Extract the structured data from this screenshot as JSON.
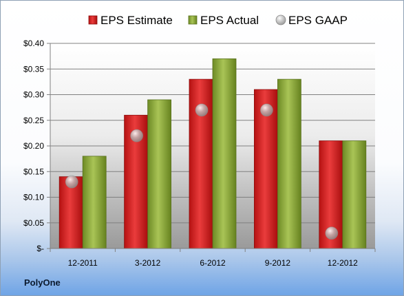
{
  "company": "PolyOne",
  "chart_data": {
    "type": "bar",
    "categories": [
      "12-2011",
      "3-2012",
      "6-2012",
      "9-2012",
      "12-2012"
    ],
    "series": [
      {
        "name": "EPS Estimate",
        "type": "bar",
        "color": "#cc1f1f",
        "values": [
          0.14,
          0.26,
          0.33,
          0.31,
          0.21
        ]
      },
      {
        "name": "EPS Actual",
        "type": "bar",
        "color": "#8aa83a",
        "values": [
          0.18,
          0.29,
          0.37,
          0.33,
          0.21
        ]
      },
      {
        "name": "EPS GAAP",
        "type": "scatter",
        "color": "#b8b8b8",
        "values": [
          0.13,
          0.22,
          0.27,
          0.27,
          0.03
        ]
      }
    ],
    "ylim": [
      0,
      0.4
    ],
    "yticks": [
      0,
      0.05,
      0.1,
      0.15,
      0.2,
      0.25,
      0.3,
      0.35,
      0.4
    ],
    "ytick_labels": [
      "$-",
      "$0.05",
      "$0.10",
      "$0.15",
      "$0.20",
      "$0.25",
      "$0.30",
      "$0.35",
      "$0.40"
    ],
    "grid": true,
    "legend_position": "top"
  }
}
